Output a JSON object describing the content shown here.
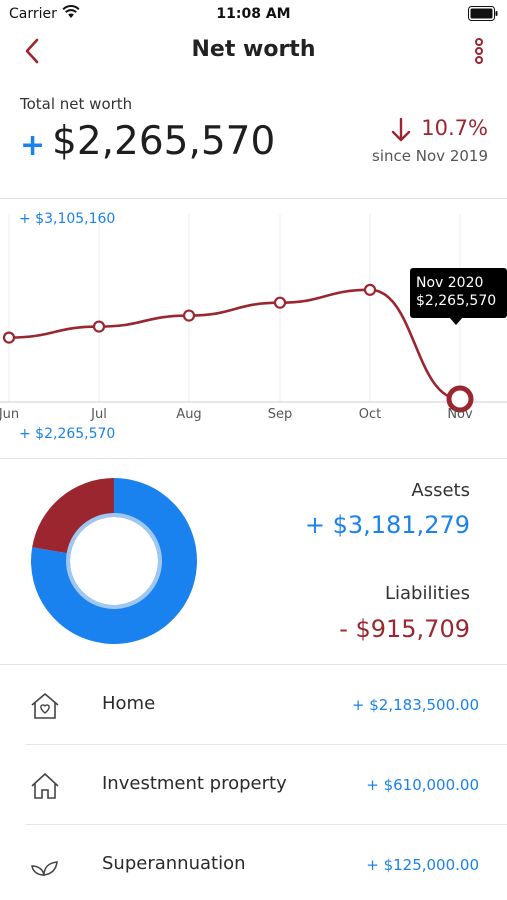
{
  "status_bar": {
    "carrier": "Carrier",
    "time": "11:08 AM"
  },
  "nav": {
    "title": "Net worth"
  },
  "summary": {
    "label": "Total net worth",
    "sign": "+",
    "total": "$2,265,570",
    "change": "10.7%",
    "since": "since Nov 2019",
    "change_direction": "down"
  },
  "chart_data": {
    "type": "line",
    "x": [
      "Jun",
      "Jul",
      "Aug",
      "Sep",
      "Oct",
      "Nov"
    ],
    "tick_labels": [
      "Jun",
      "Jul",
      "Aug",
      "Sep",
      "Oct",
      "Nov"
    ],
    "values": [
      2600000,
      2660000,
      2720000,
      2790000,
      2860000,
      2265570
    ],
    "ylim": [
      2265570,
      3105160
    ],
    "max_label": "+ $3,105,160",
    "min_label": "+ $2,265,570",
    "tooltip": {
      "month": "Nov 2020",
      "value": "$2,265,570"
    },
    "grid": true,
    "color": "#9b2630"
  },
  "breakdown": {
    "assets_label": "Assets",
    "assets_value": "+ $3,181,279",
    "liabilities_label": "Liabilities",
    "liabilities_value": "- $915,709",
    "assets_share": 0.7765,
    "liabilities_share": 0.2235,
    "assets_color": "#1a82ee",
    "liabilities_color": "#9b2630"
  },
  "accounts": [
    {
      "name": "Home",
      "amount": "+ $2,183,500.00",
      "icon": "house-heart-icon"
    },
    {
      "name": "Investment property",
      "amount": "+ $610,000.00",
      "icon": "house-icon"
    },
    {
      "name": "Superannuation",
      "amount": "+ $125,000.00",
      "icon": "leaf-icon"
    }
  ]
}
